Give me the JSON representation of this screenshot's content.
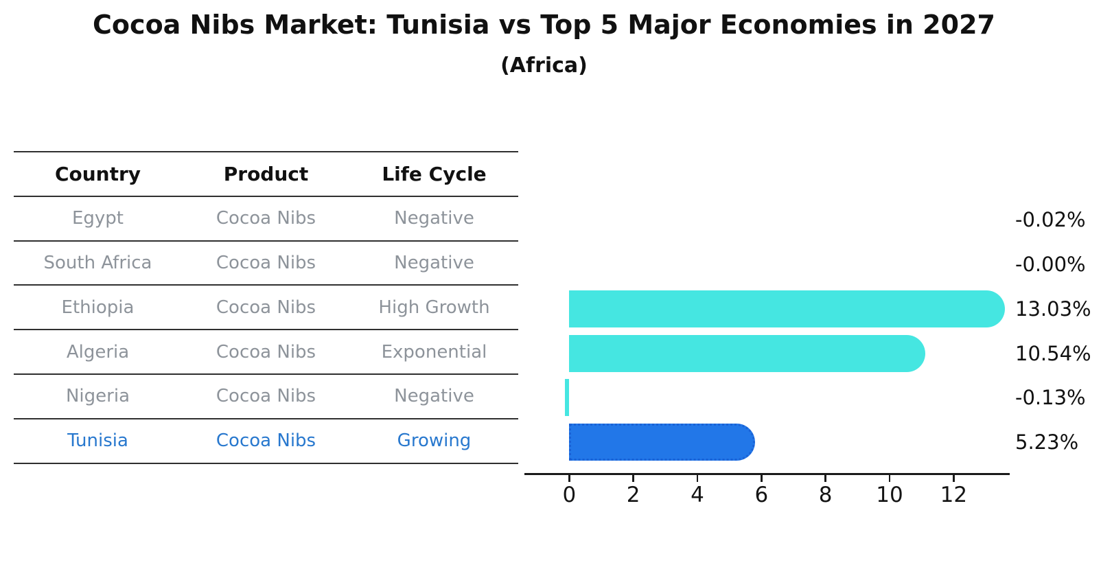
{
  "title": "Cocoa Nibs Market: Tunisia vs Top 5 Major Economies in 2027",
  "subtitle": "(Africa)",
  "table": {
    "headers": [
      "Country",
      "Product",
      "Life Cycle"
    ],
    "rows": [
      {
        "country": "Egypt",
        "product": "Cocoa Nibs",
        "life_cycle": "Negative",
        "highlighted": false
      },
      {
        "country": "South Africa",
        "product": "Cocoa Nibs",
        "life_cycle": "Negative",
        "highlighted": false
      },
      {
        "country": "Ethiopia",
        "product": "Cocoa Nibs",
        "life_cycle": "High Growth",
        "highlighted": false
      },
      {
        "country": "Algeria",
        "product": "Cocoa Nibs",
        "life_cycle": "Exponential",
        "highlighted": false
      },
      {
        "country": "Nigeria",
        "product": "Cocoa Nibs",
        "life_cycle": "Negative",
        "highlighted": false
      },
      {
        "country": "Tunisia",
        "product": "Cocoa Nibs",
        "life_cycle": "Growing",
        "highlighted": true
      }
    ]
  },
  "chart_data": {
    "type": "bar",
    "orientation": "horizontal",
    "title": "Cocoa Nibs Market: Tunisia vs Top 5 Major Economies in 2027",
    "subtitle": "(Africa)",
    "categories": [
      "Egypt",
      "South Africa",
      "Ethiopia",
      "Algeria",
      "Nigeria",
      "Tunisia"
    ],
    "values": [
      -0.02,
      0.0,
      13.03,
      10.54,
      -0.13,
      5.23
    ],
    "value_labels": [
      "-0.02%",
      "-0.00%",
      "13.03%",
      "10.54%",
      "-0.13%",
      "5.23%"
    ],
    "xlabel": "",
    "ylabel": "",
    "xticks": [
      0,
      2,
      4,
      6,
      8,
      10,
      12
    ],
    "xlim": [
      -1.4,
      13.75
    ],
    "grid": false,
    "legend": "none",
    "highlight_index": 5,
    "colors": {
      "bar": "#45E6E1",
      "highlight_bar": "#2277E8",
      "highlight_border": "#1A62D6",
      "highlight_text": "#2878CE",
      "axis": "#1a1a1a",
      "label": "#111111"
    }
  }
}
